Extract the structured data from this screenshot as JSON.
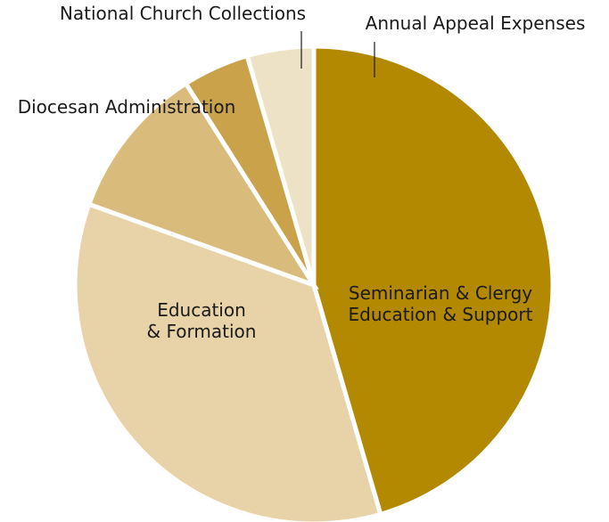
{
  "chart_data": {
    "type": "pie",
    "title": "",
    "series": [
      {
        "values": [
          {
            "label": "Seminarian & Clergy Education & Support",
            "label_lines": [
              "Seminarian & Clergy",
              "Education & Support"
            ],
            "value": 45.5,
            "color": "#B38902",
            "label_position": "inside"
          },
          {
            "label": "Education & Formation",
            "label_lines": [
              "Education",
              "& Formation"
            ],
            "value": 35.0,
            "color": "#E8D3A8",
            "label_position": "inside"
          },
          {
            "label": "Diocesan Administration",
            "label_lines": [
              "Diocesan Administration"
            ],
            "value": 10.5,
            "color": "#D9BC7C",
            "label_position": "outside"
          },
          {
            "label": "National Church Collections",
            "label_lines": [
              "National Church Collections"
            ],
            "value": 4.5,
            "color": "#C9A24A",
            "label_position": "outside-leader"
          },
          {
            "label": "Annual Appeal Expenses",
            "label_lines": [
              "Annual Appeal Expenses"
            ],
            "value": 4.5,
            "color": "#EDE2C6",
            "label_position": "outside-leader"
          }
        ]
      }
    ],
    "start_angle": "12 o'clock, clockwise",
    "legend": "none"
  }
}
